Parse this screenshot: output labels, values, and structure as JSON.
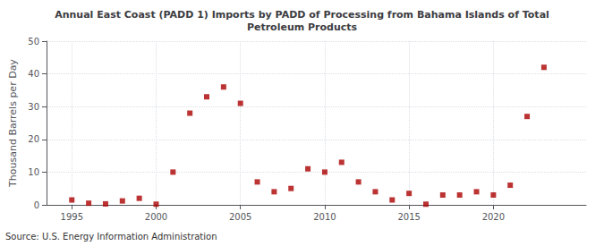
{
  "chart_data": {
    "type": "scatter",
    "title": "Annual East Coast (PADD 1) Imports by PADD of Processing from Bahama Islands of Total\nPetroleum Products",
    "ylabel": "Thousand Barrels per Day",
    "annotation": "Source: U.S. Energy Information Administration",
    "x": [
      1995,
      1996,
      1997,
      1998,
      1999,
      2000,
      2001,
      2002,
      2003,
      2004,
      2005,
      2006,
      2007,
      2008,
      2009,
      2010,
      2011,
      2012,
      2013,
      2014,
      2015,
      2016,
      2017,
      2018,
      2019,
      2020,
      2021,
      2022,
      2023
    ],
    "values": [
      1.5,
      0.5,
      0.3,
      1.2,
      2.0,
      0.2,
      10.0,
      28.0,
      33.0,
      36.0,
      31.0,
      7.0,
      4.0,
      5.0,
      11.0,
      10.0,
      13.0,
      7.0,
      4.0,
      1.5,
      3.5,
      0.2,
      3.0,
      3.0,
      4.0,
      3.0,
      6.0,
      27.0,
      42.0
    ],
    "color": "#aa0000",
    "marker": "square",
    "xlim": [
      1993.5,
      2025.5
    ],
    "xticks": [
      1995,
      2000,
      2005,
      2010,
      2015,
      2020
    ],
    "ylim": [
      0,
      50
    ],
    "yticks": [
      0,
      10,
      20,
      30,
      40,
      50
    ],
    "grid": true
  }
}
